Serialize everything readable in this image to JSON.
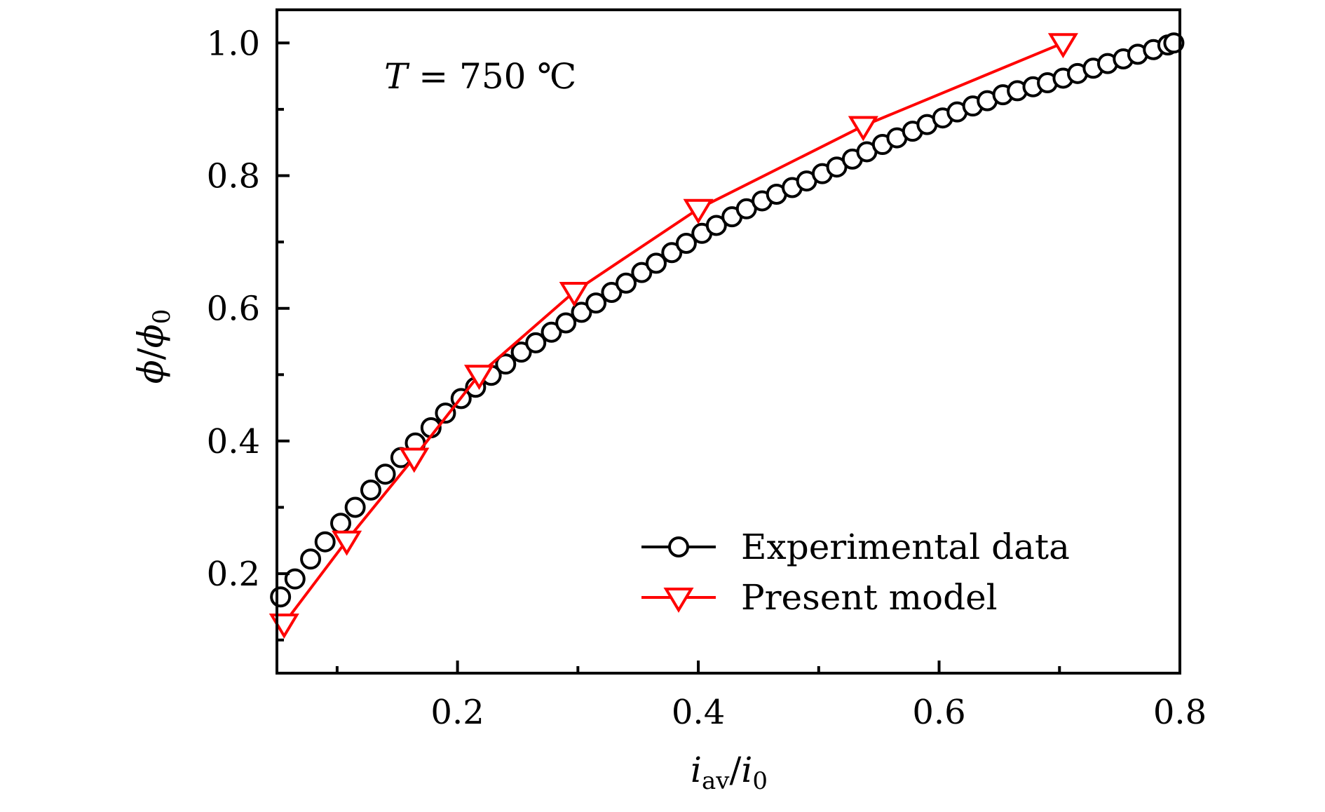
{
  "chart_data": {
    "type": "line",
    "title": "",
    "annotation": {
      "var": "T",
      "eq": " = ",
      "value": "750 ℃"
    },
    "xlabel": {
      "main": "i",
      "sub": "av",
      "slash": "/",
      "main2": "i",
      "sub2": "0"
    },
    "ylabel": {
      "main": "ϕ",
      "slash": "/",
      "main2": "ϕ",
      "sub2": "0"
    },
    "xlim": [
      0.05,
      0.8
    ],
    "ylim": [
      0.05,
      1.05
    ],
    "xticks": [
      0.2,
      0.4,
      0.6,
      0.8
    ],
    "xtick_labels": [
      "0.2",
      "0.4",
      "0.6",
      "0.8"
    ],
    "xminor": [
      0.1,
      0.3,
      0.5,
      0.7
    ],
    "yticks": [
      0.2,
      0.4,
      0.6,
      0.8,
      1.0
    ],
    "ytick_labels": [
      "0.2",
      "0.4",
      "0.6",
      "0.8",
      "1.0"
    ],
    "yminor": [
      0.1,
      0.3,
      0.5,
      0.7,
      0.9
    ],
    "grid": false,
    "legend_position": "bottom-right",
    "series": [
      {
        "name": "Experimental data",
        "color": "#000000",
        "marker": "circle-open",
        "x": [
          0.053,
          0.065,
          0.078,
          0.09,
          0.103,
          0.115,
          0.128,
          0.14,
          0.153,
          0.165,
          0.178,
          0.19,
          0.203,
          0.215,
          0.228,
          0.24,
          0.253,
          0.265,
          0.278,
          0.29,
          0.303,
          0.315,
          0.328,
          0.34,
          0.353,
          0.365,
          0.378,
          0.39,
          0.403,
          0.415,
          0.428,
          0.44,
          0.453,
          0.465,
          0.478,
          0.49,
          0.503,
          0.515,
          0.528,
          0.54,
          0.553,
          0.565,
          0.578,
          0.59,
          0.603,
          0.615,
          0.628,
          0.64,
          0.653,
          0.665,
          0.678,
          0.69,
          0.703,
          0.715,
          0.728,
          0.74,
          0.753,
          0.765,
          0.778,
          0.79,
          0.795
        ],
        "y": [
          0.165,
          0.192,
          0.222,
          0.248,
          0.276,
          0.3,
          0.326,
          0.35,
          0.375,
          0.397,
          0.42,
          0.442,
          0.464,
          0.481,
          0.499,
          0.516,
          0.534,
          0.548,
          0.564,
          0.578,
          0.594,
          0.608,
          0.624,
          0.638,
          0.654,
          0.668,
          0.684,
          0.698,
          0.713,
          0.725,
          0.738,
          0.75,
          0.762,
          0.772,
          0.782,
          0.792,
          0.803,
          0.813,
          0.825,
          0.836,
          0.847,
          0.857,
          0.867,
          0.877,
          0.887,
          0.896,
          0.905,
          0.913,
          0.922,
          0.928,
          0.934,
          0.94,
          0.947,
          0.954,
          0.962,
          0.969,
          0.976,
          0.983,
          0.99,
          0.997,
          1.0
        ]
      },
      {
        "name": "Present model",
        "color": "#ff0000",
        "marker": "triangle-down-open",
        "x": [
          0.056,
          0.108,
          0.164,
          0.218,
          0.297,
          0.4,
          0.537,
          0.703
        ],
        "y": [
          0.125,
          0.25,
          0.375,
          0.5,
          0.625,
          0.75,
          0.875,
          1.0
        ]
      }
    ]
  }
}
